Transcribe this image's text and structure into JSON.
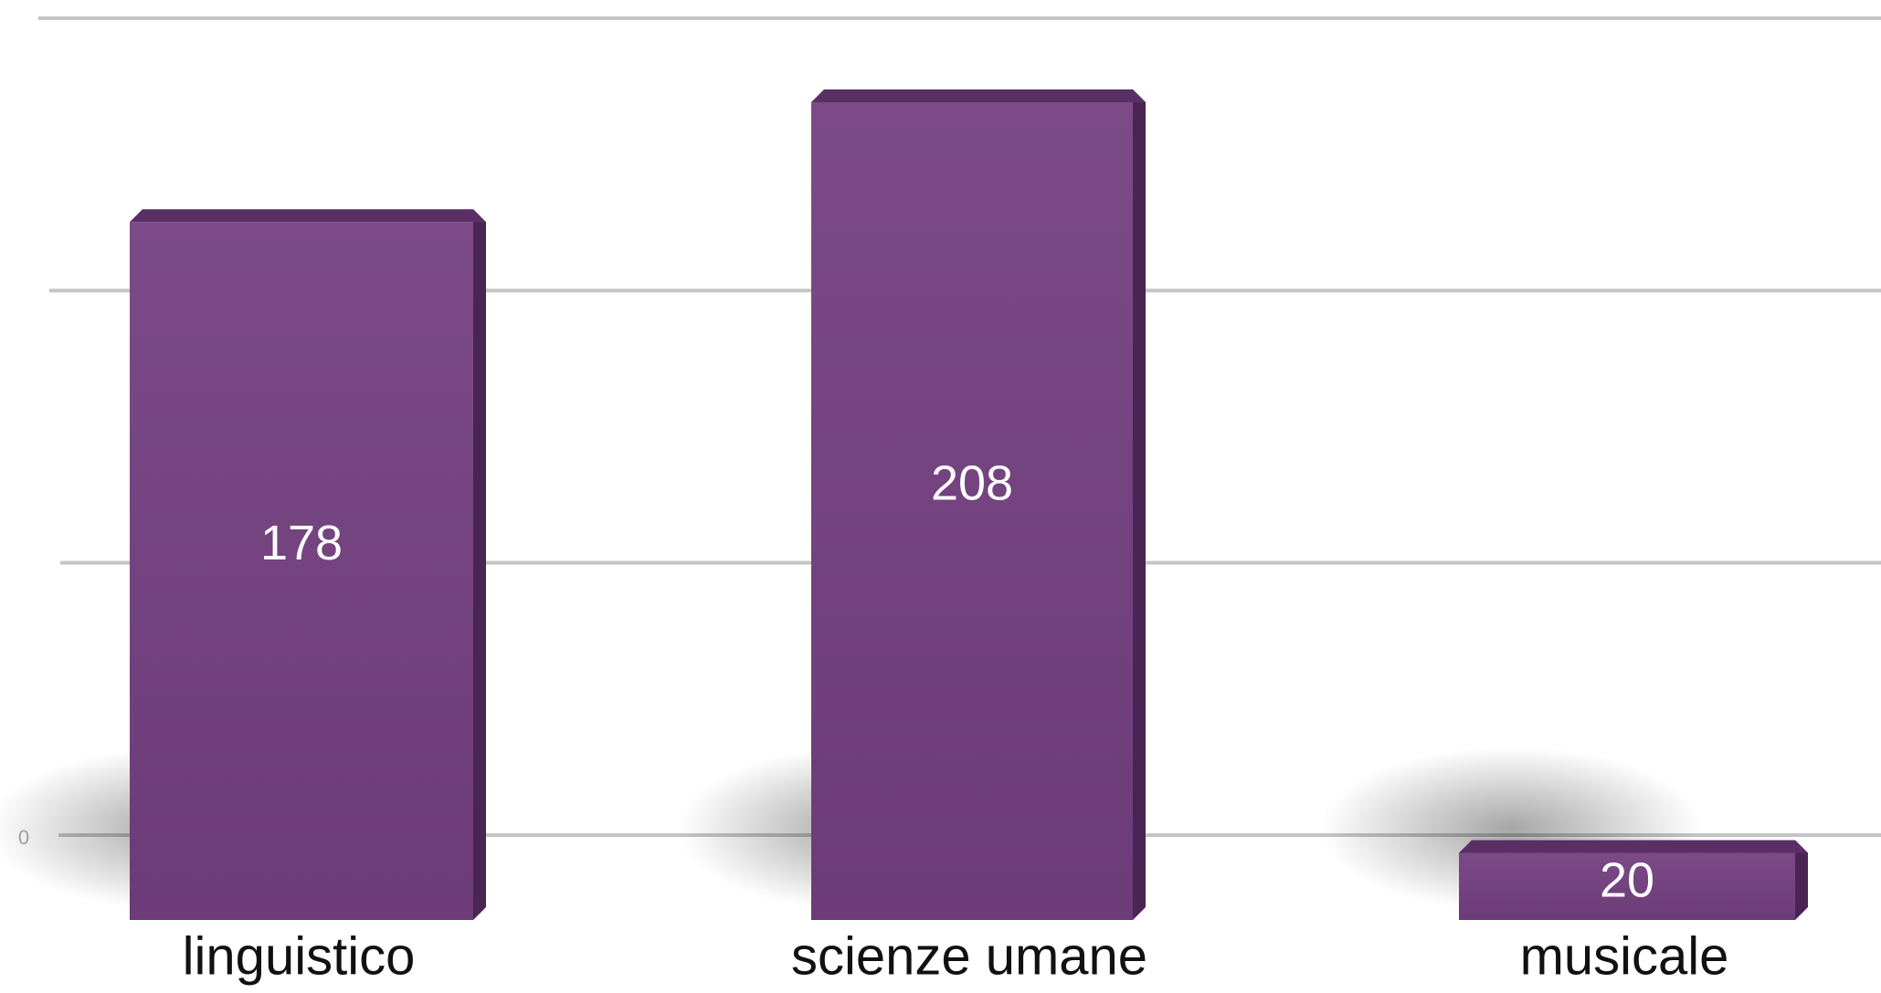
{
  "chart_data": {
    "type": "bar",
    "categories": [
      "linguistico",
      "scienze umane",
      "musicale"
    ],
    "values": [
      178,
      208,
      20
    ],
    "color": "#6e3c7b",
    "ylim": [
      0,
      210
    ],
    "yticks": [
      0
    ],
    "ygrid": [
      70,
      140,
      210
    ],
    "grid": true
  }
}
